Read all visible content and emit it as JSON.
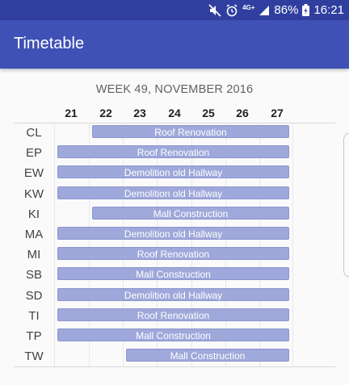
{
  "status_bar": {
    "battery": "86%",
    "time": "16:21",
    "network": "4G+",
    "icons": [
      "mute-icon",
      "alarm-icon",
      "signal-icon",
      "battery-icon"
    ]
  },
  "app_bar": {
    "title": "Timetable"
  },
  "timetable": {
    "week_title": "WEEK 49, NOVEMBER 2016",
    "days": [
      "21",
      "22",
      "23",
      "24",
      "25",
      "26",
      "27"
    ],
    "rows": [
      {
        "label": "CL",
        "task": "Roof Renovation",
        "start_day": "22"
      },
      {
        "label": "EP",
        "task": "Roof Renovation",
        "start_day": "21"
      },
      {
        "label": "EW",
        "task": "Demolition old Hallway",
        "start_day": "21"
      },
      {
        "label": "KW",
        "task": "Demolition old Hallway",
        "start_day": "21"
      },
      {
        "label": "KI",
        "task": "Mall Construction",
        "start_day": "22"
      },
      {
        "label": "MA",
        "task": "Demolition old Hallway",
        "start_day": "21"
      },
      {
        "label": "MI",
        "task": "Roof Renovation",
        "start_day": "21"
      },
      {
        "label": "SB",
        "task": "Mall Construction",
        "start_day": "21"
      },
      {
        "label": "SD",
        "task": "Demolition old Hallway",
        "start_day": "21"
      },
      {
        "label": "TI",
        "task": "Roof Renovation",
        "start_day": "21"
      },
      {
        "label": "TP",
        "task": "Mall Construction",
        "start_day": "21"
      },
      {
        "label": "TW",
        "task": "Mall Construction",
        "start_day": "23"
      }
    ]
  },
  "colors": {
    "app_bar": "#3f51b5",
    "status_bar": "#303f9f",
    "task_bar": "#9fa8da"
  }
}
